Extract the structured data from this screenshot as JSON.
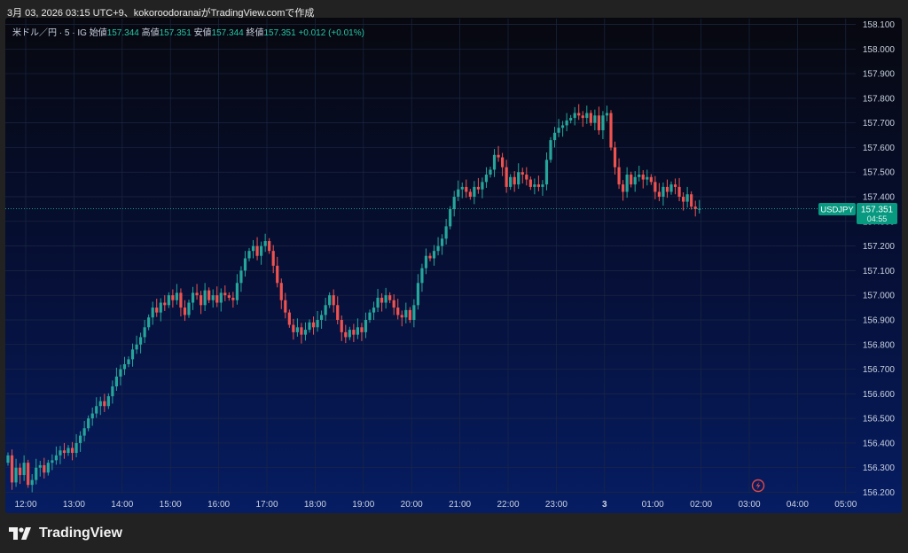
{
  "caption": "3月 03, 2026 03:15 UTC+9、kokoroodoranaiがTradingView.comで作成",
  "brand": "TradingView",
  "legend": {
    "symbol": "米ドル／円 · 5 · IG",
    "open_label": "始値",
    "open": "157.344",
    "high_label": "高値",
    "high": "157.351",
    "low_label": "安値",
    "low": "157.344",
    "close_label": "終値",
    "close": "157.351",
    "change": "+0.012 (+0.01%)"
  },
  "price_tag": {
    "symbol": "USDJPY",
    "price": "157.351",
    "countdown": "04:55"
  },
  "colors": {
    "up": "#26a69a",
    "down": "#ef5350",
    "grid": "#1b2742",
    "axis_text": "#c9d1e0",
    "tag": "#089981"
  },
  "chart_data": {
    "type": "candlestick",
    "title": "",
    "xlabel": "",
    "ylabel": "",
    "ylim": [
      156.2,
      158.1
    ],
    "y_ticks": [
      "158.100",
      "158.000",
      "157.900",
      "157.800",
      "157.700",
      "157.600",
      "157.500",
      "157.400",
      "157.300",
      "157.200",
      "157.100",
      "157.000",
      "156.900",
      "156.800",
      "156.700",
      "156.600",
      "156.500",
      "156.400",
      "156.300",
      "156.200"
    ],
    "x_ticks": [
      "12:00",
      "13:00",
      "14:00",
      "15:00",
      "16:00",
      "17:00",
      "18:00",
      "19:00",
      "20:00",
      "21:00",
      "22:00",
      "23:00",
      "3",
      "01:00",
      "02:00",
      "03:00",
      "04:00",
      "05:00"
    ],
    "last_price": 157.351,
    "grid": true,
    "bar_interval_minutes": 5,
    "closes": [
      156.35,
      156.24,
      156.3,
      156.27,
      156.32,
      156.23,
      156.25,
      156.3,
      156.31,
      156.28,
      156.32,
      156.33,
      156.35,
      156.37,
      156.36,
      156.38,
      156.36,
      156.4,
      156.43,
      156.46,
      156.5,
      156.52,
      156.55,
      156.57,
      156.55,
      156.59,
      156.63,
      156.67,
      156.7,
      156.72,
      156.74,
      156.78,
      156.8,
      156.83,
      156.87,
      156.91,
      156.95,
      156.93,
      156.97,
      156.96,
      157.0,
      156.98,
      157.01,
      156.95,
      156.92,
      156.97,
      157.01,
      157.0,
      156.96,
      157.02,
      156.98,
      157.0,
      156.97,
      157.01,
      157.0,
      156.99,
      156.98,
      157.05,
      157.1,
      157.15,
      157.18,
      157.2,
      157.16,
      157.2,
      157.22,
      157.18,
      157.12,
      157.05,
      156.98,
      156.93,
      156.88,
      156.85,
      156.87,
      156.84,
      156.86,
      156.89,
      156.87,
      156.9,
      156.92,
      156.96,
      157.0,
      156.96,
      156.9,
      156.85,
      156.83,
      156.86,
      156.84,
      156.87,
      156.85,
      156.9,
      156.93,
      156.95,
      156.99,
      156.97,
      157.0,
      156.98,
      156.95,
      156.92,
      156.91,
      156.94,
      156.9,
      156.96,
      157.05,
      157.11,
      157.16,
      157.15,
      157.18,
      157.2,
      157.23,
      157.28,
      157.35,
      157.4,
      157.43,
      157.44,
      157.42,
      157.4,
      157.44,
      157.43,
      157.46,
      157.49,
      157.51,
      157.57,
      157.56,
      157.52,
      157.44,
      157.48,
      157.45,
      157.5,
      157.49,
      157.47,
      157.44,
      157.45,
      157.44,
      157.45,
      157.55,
      157.63,
      157.66,
      157.68,
      157.69,
      157.71,
      157.72,
      157.74,
      157.73,
      157.72,
      157.74,
      157.7,
      157.73,
      157.67,
      157.73,
      157.74,
      157.6,
      157.52,
      157.45,
      157.42,
      157.49,
      157.45,
      157.48,
      157.49,
      157.47,
      157.48,
      157.46,
      157.42,
      157.4,
      157.44,
      157.42,
      157.45,
      157.44,
      157.4,
      157.38,
      157.41,
      157.36,
      157.35,
      157.351
    ]
  }
}
